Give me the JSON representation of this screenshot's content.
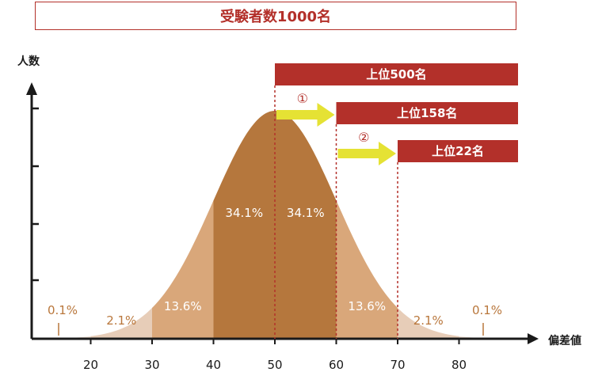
{
  "title": "受験者数1000名",
  "y_axis_label": "人数",
  "x_axis_label": "偏差値",
  "x_ticks": [
    "20",
    "30",
    "40",
    "50",
    "60",
    "70",
    "80"
  ],
  "bands": [
    {
      "from": 20,
      "to": 30,
      "label": "2.1%",
      "color": "#e7cdb8",
      "text_color": "#b9773c"
    },
    {
      "from": 30,
      "to": 40,
      "label": "13.6%",
      "color": "#d9a77a",
      "text_color": "#ffffff"
    },
    {
      "from": 40,
      "to": 50,
      "label": "34.1%",
      "color": "#b5773d",
      "text_color": "#ffffff"
    },
    {
      "from": 50,
      "to": 60,
      "label": "34.1%",
      "color": "#b5773d",
      "text_color": "#ffffff"
    },
    {
      "from": 60,
      "to": 70,
      "label": "13.6%",
      "color": "#d9a77a",
      "text_color": "#ffffff"
    },
    {
      "from": 70,
      "to": 80,
      "label": "2.1%",
      "color": "#e7cdb8",
      "text_color": "#b9773c"
    }
  ],
  "tails": [
    {
      "side": "left",
      "label": "0.1%"
    },
    {
      "side": "right",
      "label": "0.1%"
    }
  ],
  "rank_boxes": [
    {
      "from": 50,
      "label": "上位500名"
    },
    {
      "from": 60,
      "label": "上位158名"
    },
    {
      "from": 70,
      "label": "上位22名"
    }
  ],
  "steps": [
    {
      "from": 50,
      "to": 60,
      "label": "①"
    },
    {
      "from": 60,
      "to": 70,
      "label": "②"
    }
  ],
  "colors": {
    "accent": "#b3302a",
    "arrow": "#e5e234",
    "axis": "#1a1a1a",
    "tail_fill": "#f1e3d7"
  }
}
